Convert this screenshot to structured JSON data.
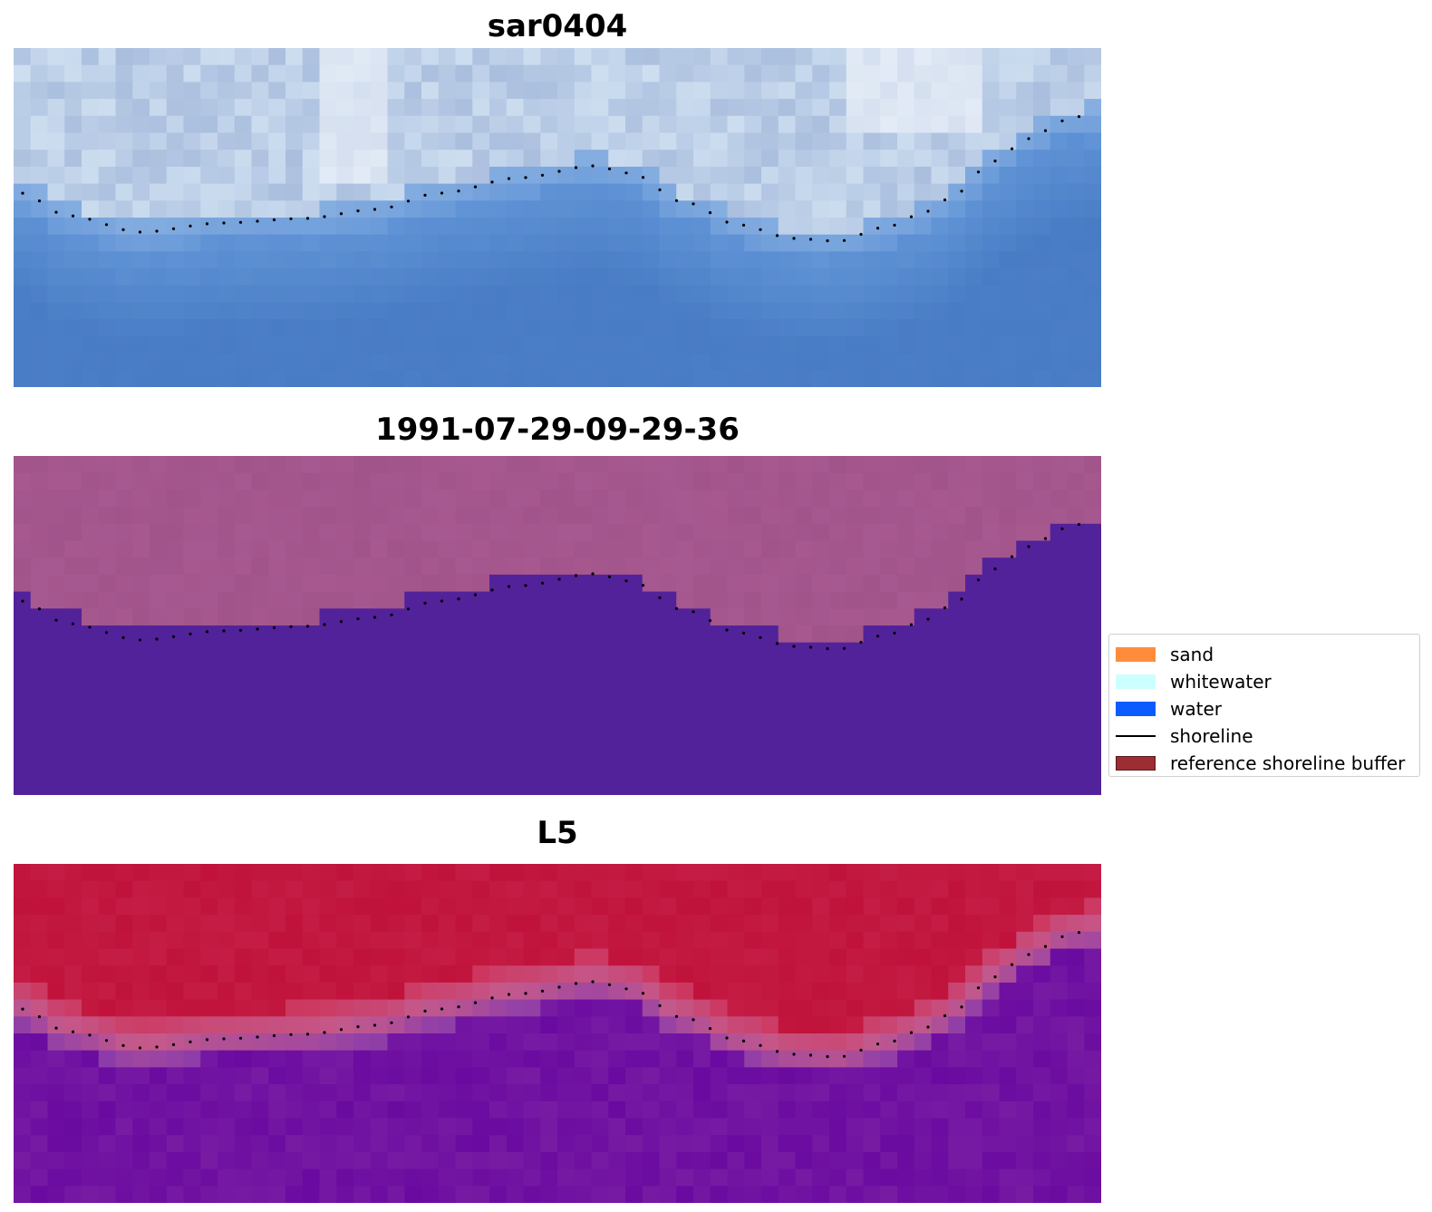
{
  "panels": [
    {
      "title": "sar0404",
      "style": "rgb"
    },
    {
      "title": "1991-07-29-09-29-36",
      "style": "classified"
    },
    {
      "title": "L5",
      "style": "index"
    }
  ],
  "legend": {
    "items": [
      {
        "label": "sand",
        "kind": "patch",
        "color": "#ff8c3a"
      },
      {
        "label": "whitewater",
        "kind": "patch",
        "color": "#ccffff"
      },
      {
        "label": "water",
        "kind": "patch",
        "color": "#0b5cff"
      },
      {
        "label": "shoreline",
        "kind": "line",
        "color": "#000000"
      },
      {
        "label": "reference shoreline buffer",
        "kind": "patch",
        "color": "#9b2d33",
        "edge": "#5a1a1e"
      }
    ]
  },
  "colors": {
    "shoreline_dots": "#000000",
    "classified_land": "#a1548a",
    "classified_water": "#52229a",
    "index_high": "#c0123a",
    "index_low": "#6a0aa0"
  }
}
